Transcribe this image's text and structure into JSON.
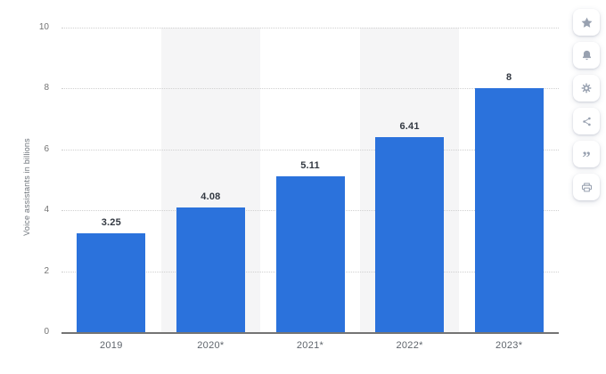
{
  "page": {
    "background": "#ffffff"
  },
  "chart_data": {
    "type": "bar",
    "title": "",
    "xlabel": "",
    "ylabel": "Voice assistants in billions",
    "categories": [
      "2019",
      "2020*",
      "2021*",
      "2022*",
      "2023*"
    ],
    "values": [
      3.25,
      4.08,
      5.11,
      6.41,
      8
    ],
    "value_labels": [
      "3.25",
      "4.08",
      "5.11",
      "6.41",
      "8"
    ],
    "ylim": [
      0,
      10
    ],
    "yticks": [
      0,
      2,
      4,
      6,
      8,
      10
    ],
    "grid": "horizontal-dotted",
    "legend": "none",
    "bar_color": "#2b72dc",
    "band_color": "#f5f5f6",
    "band_columns": [
      1,
      3
    ],
    "axis_line_color": "#747474",
    "gridline_color": "#d0d0d0",
    "tick_label_color": "#737373",
    "value_label_color": "#333942"
  },
  "sidebar": {
    "icon_color": "#98a1b0",
    "quote_glyph": "”",
    "items": [
      {
        "label": "favorite",
        "icon": "star-icon"
      },
      {
        "label": "notifications",
        "icon": "bell-icon"
      },
      {
        "label": "settings",
        "icon": "gear-icon"
      },
      {
        "label": "share",
        "icon": "share-icon"
      },
      {
        "label": "cite",
        "icon": "quote-icon"
      },
      {
        "label": "print",
        "icon": "printer-icon"
      }
    ]
  }
}
